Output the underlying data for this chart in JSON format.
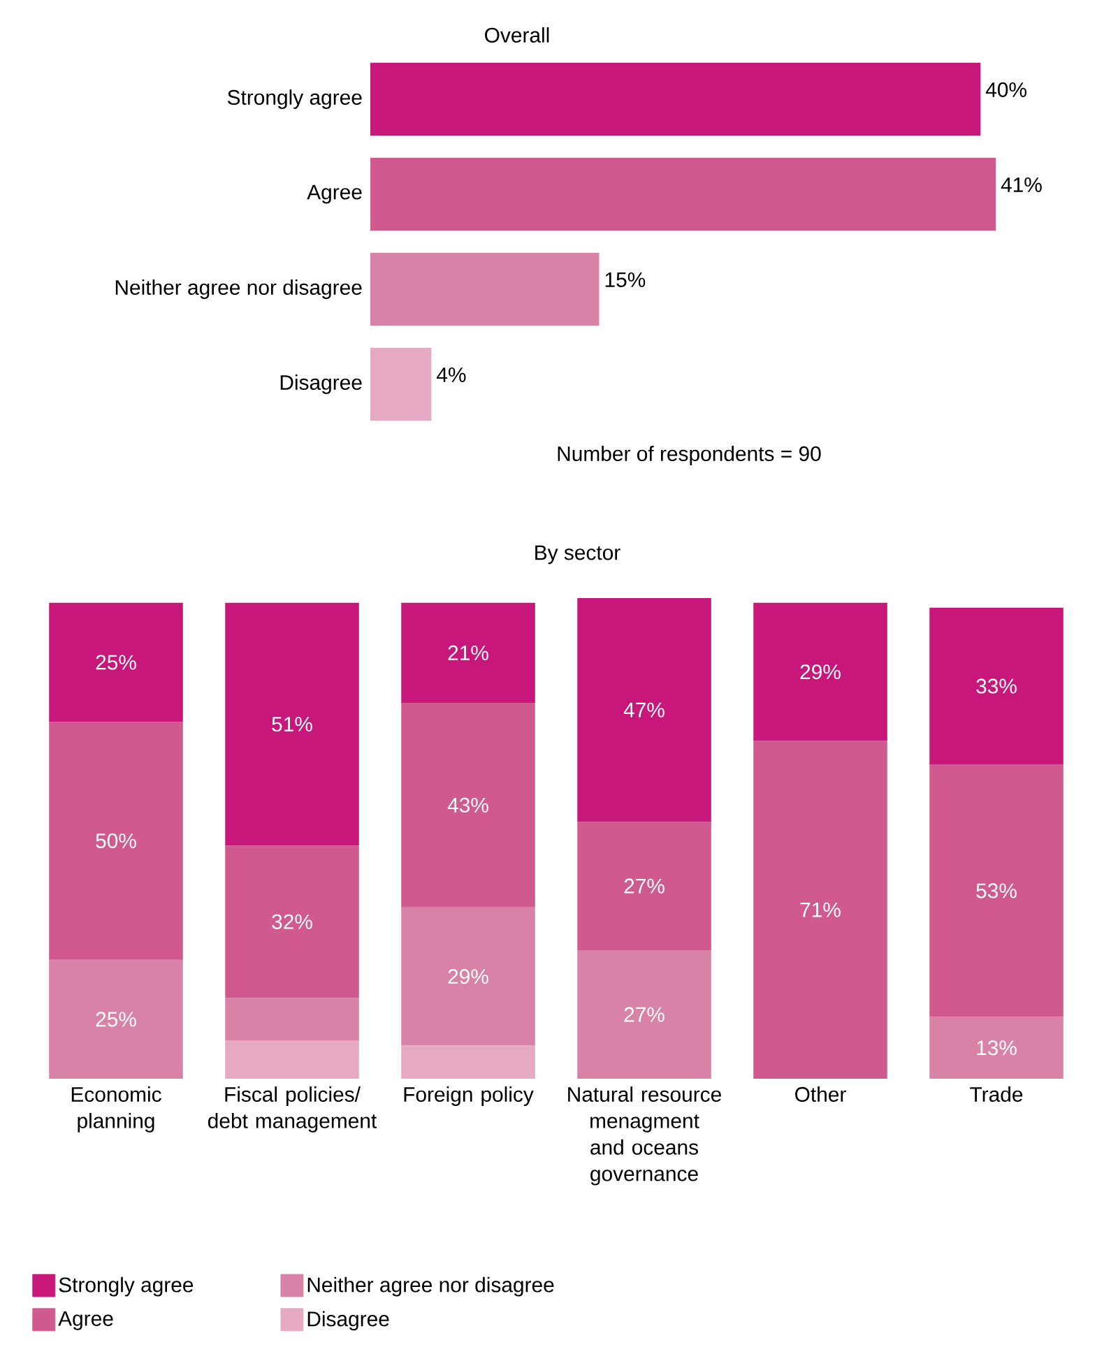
{
  "chart_data": [
    {
      "type": "bar",
      "orientation": "horizontal",
      "title": "Overall",
      "categories": [
        "Strongly agree",
        "Agree",
        "Neither agree nor disagree",
        "Disagree"
      ],
      "values": [
        40,
        41,
        15,
        4
      ],
      "colors": [
        "#c8177a",
        "#d0598f",
        "#d982a8",
        "#e6a9c4"
      ],
      "value_labels": [
        "40%",
        "41%",
        "15%",
        "4%"
      ],
      "annotations": [
        "Number of respondents = 90"
      ]
    },
    {
      "type": "bar",
      "stacked": true,
      "title": "By sector",
      "legend": "bottom left",
      "categories": [
        "Economic planning",
        "Fiscal policies/ debt management",
        "Foreign policy",
        "Natural resource menagment and oceans governance",
        "Other",
        "Trade"
      ],
      "series": [
        {
          "name": "Disagree",
          "color": "#e6a9c4",
          "values": [
            null,
            8,
            7,
            null,
            null,
            null
          ],
          "value_labels": [
            null,
            null,
            null,
            null,
            null,
            null
          ]
        },
        {
          "name": "Neither agree nor disagree",
          "color": "#d982a8",
          "values": [
            25,
            9,
            29,
            27,
            null,
            13
          ],
          "value_labels": [
            "25%",
            null,
            "29%",
            "27%",
            null,
            "13%"
          ]
        },
        {
          "name": "Agree",
          "color": "#d0598f",
          "values": [
            50,
            32,
            43,
            27,
            71,
            53
          ],
          "value_labels": [
            "50%",
            "32%",
            "43%",
            "27%",
            "71%",
            "53%"
          ]
        },
        {
          "name": "Strongly agree",
          "color": "#c8177a",
          "values": [
            25,
            51,
            21,
            47,
            29,
            33
          ],
          "value_labels": [
            "25%",
            "51%",
            "21%",
            "47%",
            "29%",
            "33%"
          ]
        }
      ]
    }
  ]
}
